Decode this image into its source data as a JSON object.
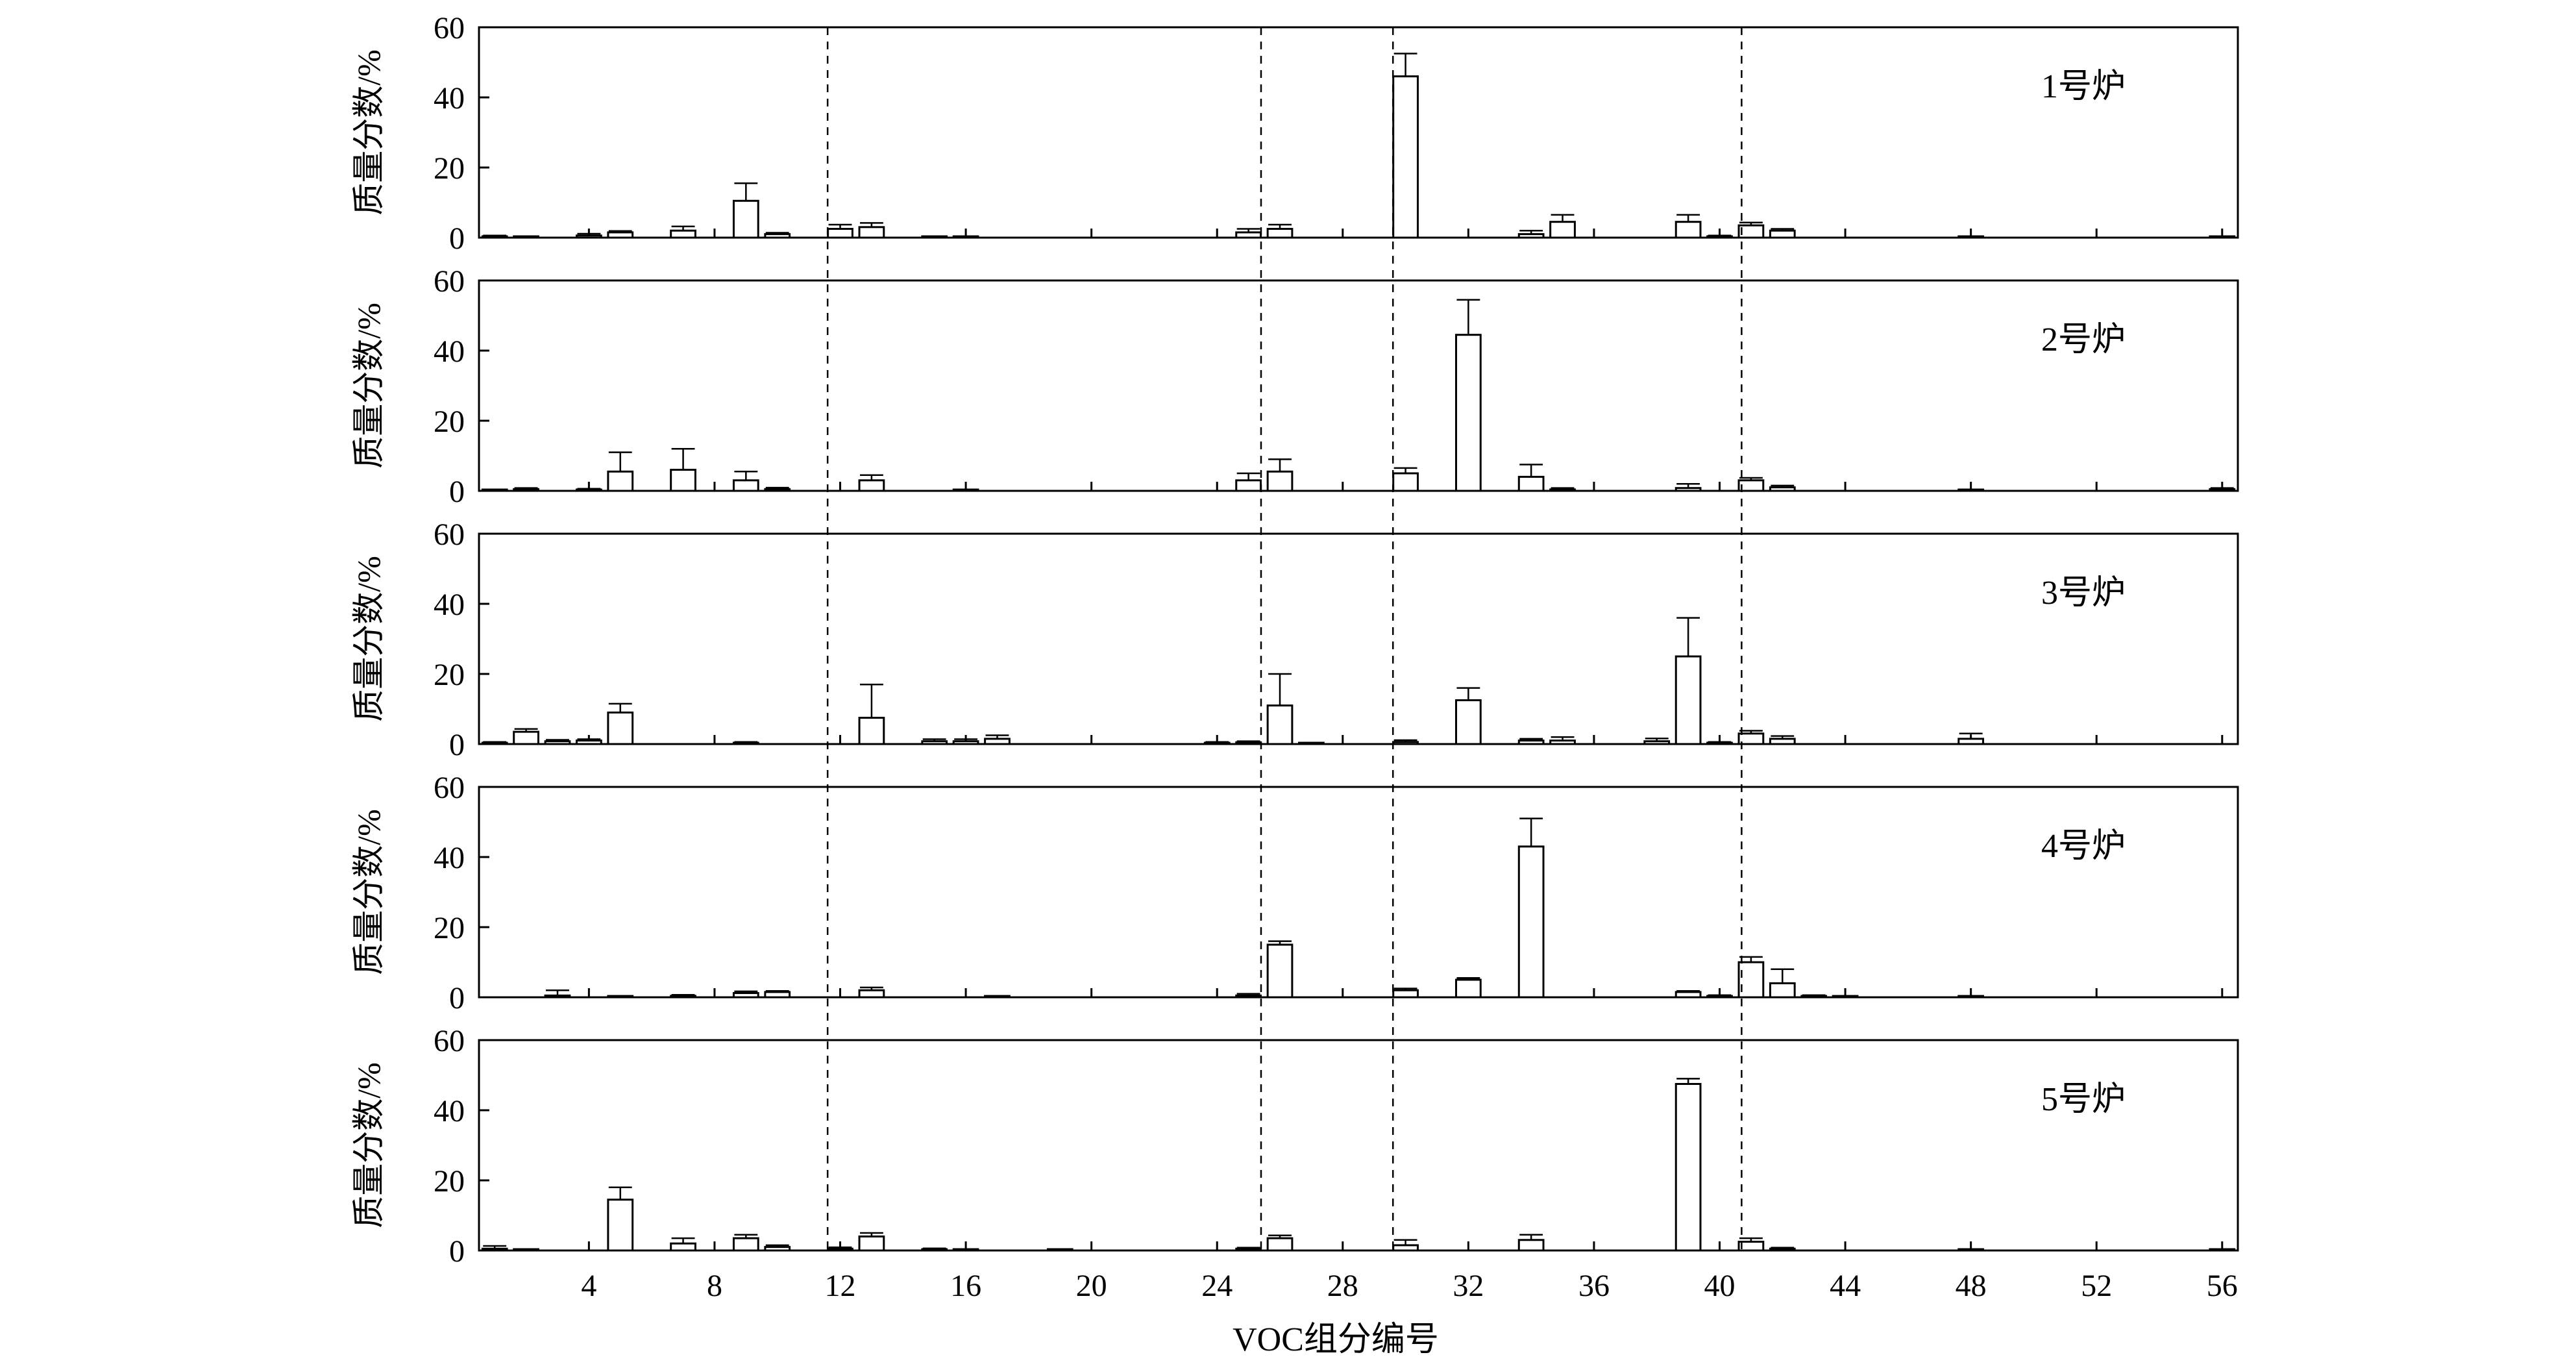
{
  "chart_data": {
    "type": "bar",
    "xlabel": "VOC组分编号",
    "ylabel": "质量分数/%",
    "ylim": [
      0,
      60
    ],
    "yticks": [
      0,
      20,
      40,
      60
    ],
    "xlim": [
      0.5,
      56.5
    ],
    "xticks": [
      4,
      8,
      12,
      16,
      20,
      24,
      28,
      32,
      36,
      40,
      44,
      48,
      52,
      56
    ],
    "separators": [
      11.6,
      25.4,
      29.6,
      40.7
    ],
    "grid": false,
    "panels": [
      {
        "label": "1号炉",
        "bars": [
          {
            "x": 1,
            "v": 0.3,
            "e": 0.3
          },
          {
            "x": 2,
            "v": 0.2,
            "e": 0.2
          },
          {
            "x": 4,
            "v": 0.6,
            "e": 0.5
          },
          {
            "x": 5,
            "v": 1.5,
            "e": 0.4
          },
          {
            "x": 7,
            "v": 2.0,
            "e": 1.2
          },
          {
            "x": 9,
            "v": 10.5,
            "e": 5.0
          },
          {
            "x": 10,
            "v": 1.0,
            "e": 0.4
          },
          {
            "x": 12,
            "v": 2.5,
            "e": 1.2
          },
          {
            "x": 13,
            "v": 3.0,
            "e": 1.2
          },
          {
            "x": 15,
            "v": 0.2,
            "e": 0.2
          },
          {
            "x": 16,
            "v": 0.2,
            "e": 0.2
          },
          {
            "x": 25,
            "v": 1.5,
            "e": 1.0
          },
          {
            "x": 26,
            "v": 2.5,
            "e": 1.2
          },
          {
            "x": 30,
            "v": 46,
            "e": 6.5
          },
          {
            "x": 34,
            "v": 1.0,
            "e": 1.0
          },
          {
            "x": 35,
            "v": 4.5,
            "e": 2.0
          },
          {
            "x": 39,
            "v": 4.5,
            "e": 2.0
          },
          {
            "x": 40,
            "v": 0.3,
            "e": 0.3
          },
          {
            "x": 41,
            "v": 3.5,
            "e": 0.8
          },
          {
            "x": 42,
            "v": 2.0,
            "e": 0.5
          },
          {
            "x": 48,
            "v": 0.1,
            "e": 0.2
          },
          {
            "x": 56,
            "v": 0.2,
            "e": 0.2
          }
        ]
      },
      {
        "label": "2号炉",
        "bars": [
          {
            "x": 1,
            "v": 0.2,
            "e": 0.2
          },
          {
            "x": 2,
            "v": 0.5,
            "e": 0.3
          },
          {
            "x": 4,
            "v": 0.3,
            "e": 0.3
          },
          {
            "x": 5,
            "v": 5.5,
            "e": 5.5
          },
          {
            "x": 7,
            "v": 6.0,
            "e": 6.0
          },
          {
            "x": 9,
            "v": 3.0,
            "e": 2.5
          },
          {
            "x": 10,
            "v": 0.5,
            "e": 0.4
          },
          {
            "x": 13,
            "v": 3.0,
            "e": 1.5
          },
          {
            "x": 16,
            "v": 0.2,
            "e": 0.2
          },
          {
            "x": 25,
            "v": 3.0,
            "e": 2.0
          },
          {
            "x": 26,
            "v": 5.5,
            "e": 3.5
          },
          {
            "x": 30,
            "v": 5.0,
            "e": 1.5
          },
          {
            "x": 32,
            "v": 44.5,
            "e": 10.0
          },
          {
            "x": 34,
            "v": 4.0,
            "e": 3.5
          },
          {
            "x": 35,
            "v": 0.4,
            "e": 0.4
          },
          {
            "x": 39,
            "v": 0.8,
            "e": 1.2
          },
          {
            "x": 41,
            "v": 3.0,
            "e": 0.7
          },
          {
            "x": 42,
            "v": 1.0,
            "e": 0.5
          },
          {
            "x": 48,
            "v": 0.1,
            "e": 0.2
          },
          {
            "x": 56,
            "v": 0.5,
            "e": 0.3
          }
        ]
      },
      {
        "label": "3号炉",
        "bars": [
          {
            "x": 1,
            "v": 0.3,
            "e": 0.3
          },
          {
            "x": 2,
            "v": 3.5,
            "e": 0.8
          },
          {
            "x": 3,
            "v": 0.8,
            "e": 0.4
          },
          {
            "x": 4,
            "v": 1.0,
            "e": 0.4
          },
          {
            "x": 5,
            "v": 9.0,
            "e": 2.5
          },
          {
            "x": 9,
            "v": 0.3,
            "e": 0.3
          },
          {
            "x": 13,
            "v": 7.5,
            "e": 9.5
          },
          {
            "x": 15,
            "v": 0.8,
            "e": 0.6
          },
          {
            "x": 16,
            "v": 0.8,
            "e": 0.6
          },
          {
            "x": 17,
            "v": 1.5,
            "e": 1.0
          },
          {
            "x": 24,
            "v": 0.3,
            "e": 0.3
          },
          {
            "x": 25,
            "v": 0.5,
            "e": 0.3
          },
          {
            "x": 26,
            "v": 11.0,
            "e": 9.0
          },
          {
            "x": 27,
            "v": 0.2,
            "e": 0.2
          },
          {
            "x": 30,
            "v": 0.6,
            "e": 0.5
          },
          {
            "x": 32,
            "v": 12.5,
            "e": 3.5
          },
          {
            "x": 34,
            "v": 1.0,
            "e": 0.5
          },
          {
            "x": 35,
            "v": 1.0,
            "e": 1.0
          },
          {
            "x": 38,
            "v": 0.8,
            "e": 0.8
          },
          {
            "x": 39,
            "v": 25,
            "e": 11.0
          },
          {
            "x": 40,
            "v": 0.3,
            "e": 0.3
          },
          {
            "x": 41,
            "v": 3.0,
            "e": 0.8
          },
          {
            "x": 42,
            "v": 1.5,
            "e": 0.8
          },
          {
            "x": 48,
            "v": 1.5,
            "e": 1.5
          }
        ]
      },
      {
        "label": "4号炉",
        "bars": [
          {
            "x": 3,
            "v": 0.5,
            "e": 1.5
          },
          {
            "x": 5,
            "v": 0.2,
            "e": 0.2
          },
          {
            "x": 7,
            "v": 0.4,
            "e": 0.3
          },
          {
            "x": 9,
            "v": 1.2,
            "e": 0.5
          },
          {
            "x": 10,
            "v": 1.5,
            "e": 0.3
          },
          {
            "x": 13,
            "v": 2.0,
            "e": 0.8
          },
          {
            "x": 17,
            "v": 0.1,
            "e": 0.1
          },
          {
            "x": 25,
            "v": 0.5,
            "e": 0.5
          },
          {
            "x": 26,
            "v": 15.0,
            "e": 1.0
          },
          {
            "x": 30,
            "v": 2.0,
            "e": 0.5
          },
          {
            "x": 32,
            "v": 5.0,
            "e": 0.5
          },
          {
            "x": 34,
            "v": 43,
            "e": 8.0
          },
          {
            "x": 39,
            "v": 1.5,
            "e": 0.3
          },
          {
            "x": 40,
            "v": 0.3,
            "e": 0.3
          },
          {
            "x": 41,
            "v": 10.0,
            "e": 1.5
          },
          {
            "x": 42,
            "v": 4.0,
            "e": 4.0
          },
          {
            "x": 43,
            "v": 0.3,
            "e": 0.3
          },
          {
            "x": 44,
            "v": 0.2,
            "e": 0.2
          },
          {
            "x": 48,
            "v": 0.1,
            "e": 0.2
          }
        ]
      },
      {
        "label": "5号炉",
        "bars": [
          {
            "x": 1,
            "v": 0.5,
            "e": 0.8
          },
          {
            "x": 2,
            "v": 0.2,
            "e": 0.2
          },
          {
            "x": 5,
            "v": 14.5,
            "e": 3.5
          },
          {
            "x": 7,
            "v": 2.0,
            "e": 1.5
          },
          {
            "x": 9,
            "v": 3.5,
            "e": 1.0
          },
          {
            "x": 10,
            "v": 1.0,
            "e": 0.5
          },
          {
            "x": 12,
            "v": 0.5,
            "e": 0.4
          },
          {
            "x": 13,
            "v": 4.0,
            "e": 1.0
          },
          {
            "x": 15,
            "v": 0.3,
            "e": 0.3
          },
          {
            "x": 16,
            "v": 0.2,
            "e": 0.2
          },
          {
            "x": 19,
            "v": 0.1,
            "e": 0.1
          },
          {
            "x": 25,
            "v": 0.5,
            "e": 0.3
          },
          {
            "x": 26,
            "v": 3.5,
            "e": 0.8
          },
          {
            "x": 30,
            "v": 1.5,
            "e": 1.5
          },
          {
            "x": 34,
            "v": 3.0,
            "e": 1.5
          },
          {
            "x": 39,
            "v": 47.5,
            "e": 1.5
          },
          {
            "x": 41,
            "v": 2.5,
            "e": 1.0
          },
          {
            "x": 42,
            "v": 0.5,
            "e": 0.3
          },
          {
            "x": 48,
            "v": 0.1,
            "e": 0.1
          },
          {
            "x": 56,
            "v": 0.1,
            "e": 0.1
          }
        ]
      }
    ]
  }
}
